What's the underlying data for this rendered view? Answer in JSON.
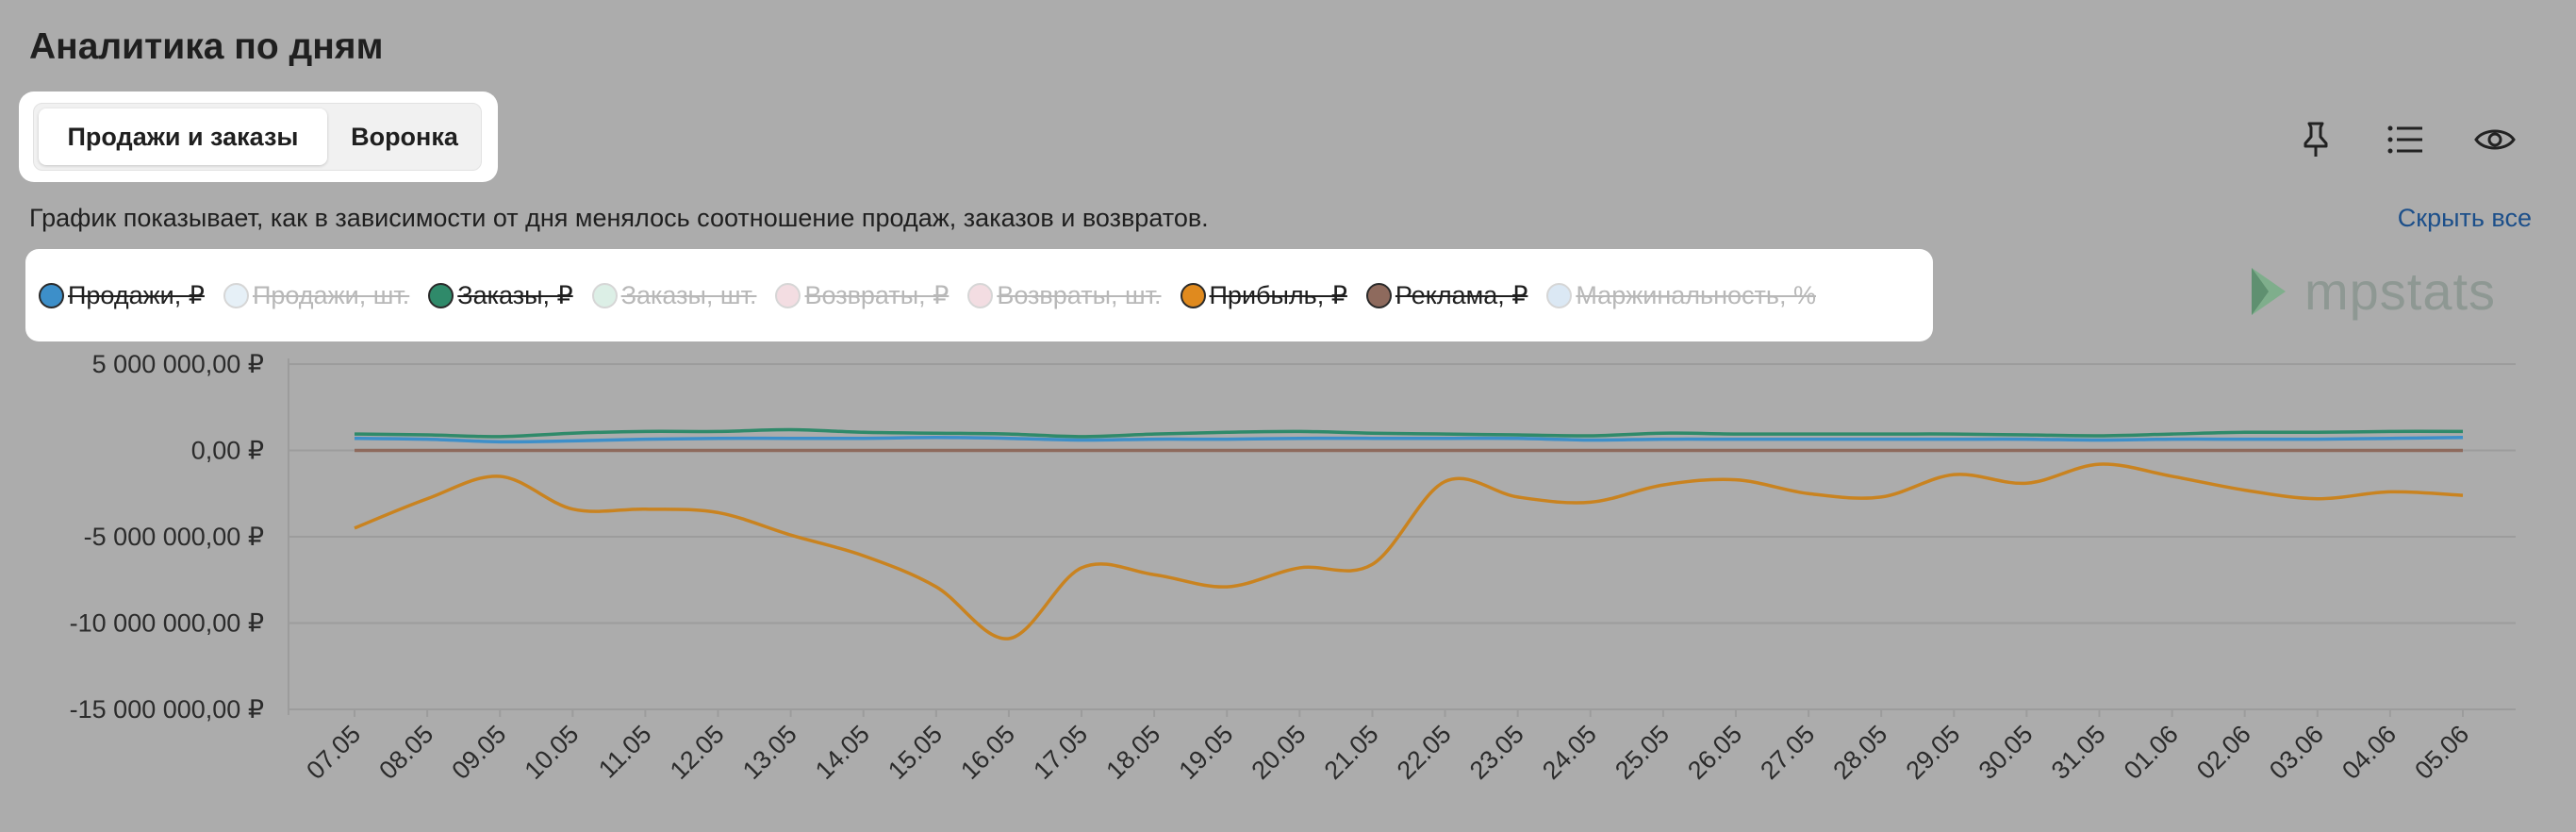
{
  "page": {
    "title": "Аналитика по дням"
  },
  "tabs": [
    {
      "label": "Продажи и заказы",
      "active": true
    },
    {
      "label": "Воронка",
      "active": false
    }
  ],
  "toolbar": {
    "icons": [
      "pin-icon",
      "list-icon",
      "eye-icon"
    ]
  },
  "description": "График показывает, как в зависимости от дня менялось соотношение продаж, заказов и возвратов.",
  "hide_all_label": "Скрыть все",
  "legend": [
    {
      "label": "Продажи, ₽",
      "color": "#3d8fc9",
      "enabled": true
    },
    {
      "label": "Продажи, шт.",
      "color": "#e6f0f7",
      "enabled": false
    },
    {
      "label": "Заказы, ₽",
      "color": "#2f8a6a",
      "enabled": true
    },
    {
      "label": "Заказы, шт.",
      "color": "#dcefe6",
      "enabled": false
    },
    {
      "label": "Возвраты, ₽",
      "color": "#f3dde2",
      "enabled": false
    },
    {
      "label": "Возвраты, шт.",
      "color": "#f3dde2",
      "enabled": false
    },
    {
      "label": "Прибыль, ₽",
      "color": "#e08a1e",
      "enabled": true
    },
    {
      "label": "Реклама, ₽",
      "color": "#8e6a5d",
      "enabled": true
    },
    {
      "label": "Маржинальность, %",
      "color": "#dbe8f4",
      "enabled": false
    }
  ],
  "logo": {
    "text": "mpstats"
  },
  "chart_data": {
    "type": "line",
    "title": "",
    "xlabel": "",
    "ylabel": "",
    "ylim": [
      -15000000,
      5000000
    ],
    "yticks": [
      "5 000 000,00 ₽",
      "0,00 ₽",
      "-5 000 000,00 ₽",
      "-10 000 000,00 ₽",
      "-15 000 000,00 ₽"
    ],
    "ytick_values": [
      5000000,
      0,
      -5000000,
      -10000000,
      -15000000
    ],
    "grid": true,
    "categories": [
      "07.05",
      "08.05",
      "09.05",
      "10.05",
      "11.05",
      "12.05",
      "13.05",
      "14.05",
      "15.05",
      "16.05",
      "17.05",
      "18.05",
      "19.05",
      "20.05",
      "21.05",
      "22.05",
      "23.05",
      "24.05",
      "25.05",
      "26.05",
      "27.05",
      "28.05",
      "29.05",
      "30.05",
      "31.05",
      "01.06",
      "02.06",
      "03.06",
      "04.06",
      "05.06"
    ],
    "series": [
      {
        "name": "Продажи, ₽",
        "color": "#3d8fc9",
        "values": [
          700000,
          650000,
          500000,
          550000,
          650000,
          700000,
          700000,
          700000,
          750000,
          700000,
          600000,
          650000,
          650000,
          700000,
          700000,
          700000,
          700000,
          600000,
          650000,
          650000,
          650000,
          650000,
          650000,
          650000,
          600000,
          650000,
          650000,
          650000,
          700000,
          750000
        ]
      },
      {
        "name": "Заказы, ₽",
        "color": "#2f8a6a",
        "values": [
          950000,
          900000,
          800000,
          1000000,
          1100000,
          1100000,
          1200000,
          1050000,
          1000000,
          950000,
          800000,
          950000,
          1050000,
          1100000,
          1000000,
          950000,
          900000,
          850000,
          1000000,
          950000,
          950000,
          950000,
          950000,
          900000,
          850000,
          950000,
          1050000,
          1050000,
          1100000,
          1100000
        ]
      },
      {
        "name": "Реклама, ₽",
        "color": "#8e6a5d",
        "values": [
          0,
          0,
          0,
          0,
          0,
          0,
          0,
          0,
          0,
          0,
          0,
          0,
          0,
          0,
          0,
          0,
          0,
          0,
          0,
          0,
          0,
          0,
          0,
          0,
          0,
          0,
          0,
          0,
          0,
          0
        ]
      },
      {
        "name": "Прибыль, ₽",
        "color": "#c98320",
        "values": [
          -4500000,
          -2800000,
          -1500000,
          -3400000,
          -3400000,
          -3600000,
          -4900000,
          -6100000,
          -7900000,
          -10900000,
          -6800000,
          -7200000,
          -7900000,
          -6800000,
          -6600000,
          -1800000,
          -2700000,
          -3000000,
          -2000000,
          -1700000,
          -2500000,
          -2700000,
          -1400000,
          -1900000,
          -800000,
          -1500000,
          -2300000,
          -2800000,
          -2400000,
          -2600000
        ]
      }
    ]
  }
}
